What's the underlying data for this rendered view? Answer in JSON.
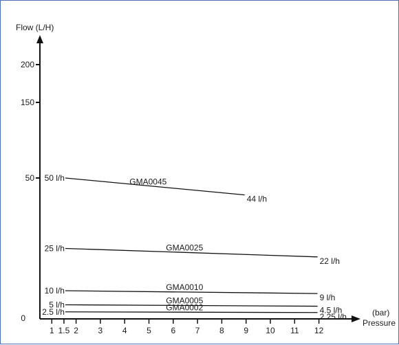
{
  "chart_data": {
    "type": "line",
    "ylabel": "Flow (L/H)",
    "xlabel_unit": "(bar)",
    "xlabel": "Pressure",
    "y_ticks": [
      {
        "value": 0,
        "label": "0"
      },
      {
        "value": 50,
        "label": "50"
      },
      {
        "value": 150,
        "label": "150"
      },
      {
        "value": 200,
        "label": "200"
      }
    ],
    "x_ticks": [
      "1",
      "1.5",
      "2",
      "3",
      "4",
      "5",
      "6",
      "7",
      "8",
      "9",
      "10",
      "11",
      "12"
    ],
    "grid": false,
    "series": [
      {
        "name": "GMA0045",
        "x": [
          1.5,
          9
        ],
        "y": [
          50,
          44
        ],
        "start_label": "50 l/h",
        "end_label": "44 l/h"
      },
      {
        "name": "GMA0025",
        "x": [
          1.5,
          12
        ],
        "y": [
          25,
          22
        ],
        "start_label": "25 l/h",
        "end_label": "22 l/h"
      },
      {
        "name": "GMA0010",
        "x": [
          1.5,
          12
        ],
        "y": [
          10,
          9
        ],
        "start_label": "10 l/h",
        "end_label": "9 l/h"
      },
      {
        "name": "GMA0005",
        "x": [
          1.5,
          12
        ],
        "y": [
          5,
          4.5
        ],
        "start_label": "5 l/h",
        "end_label": "4.5 l/h"
      },
      {
        "name": "GMA0002",
        "x": [
          1.5,
          12
        ],
        "y": [
          2.5,
          2.25
        ],
        "start_label": "2.5 l/h",
        "end_label": "2.25 l/h"
      }
    ]
  }
}
